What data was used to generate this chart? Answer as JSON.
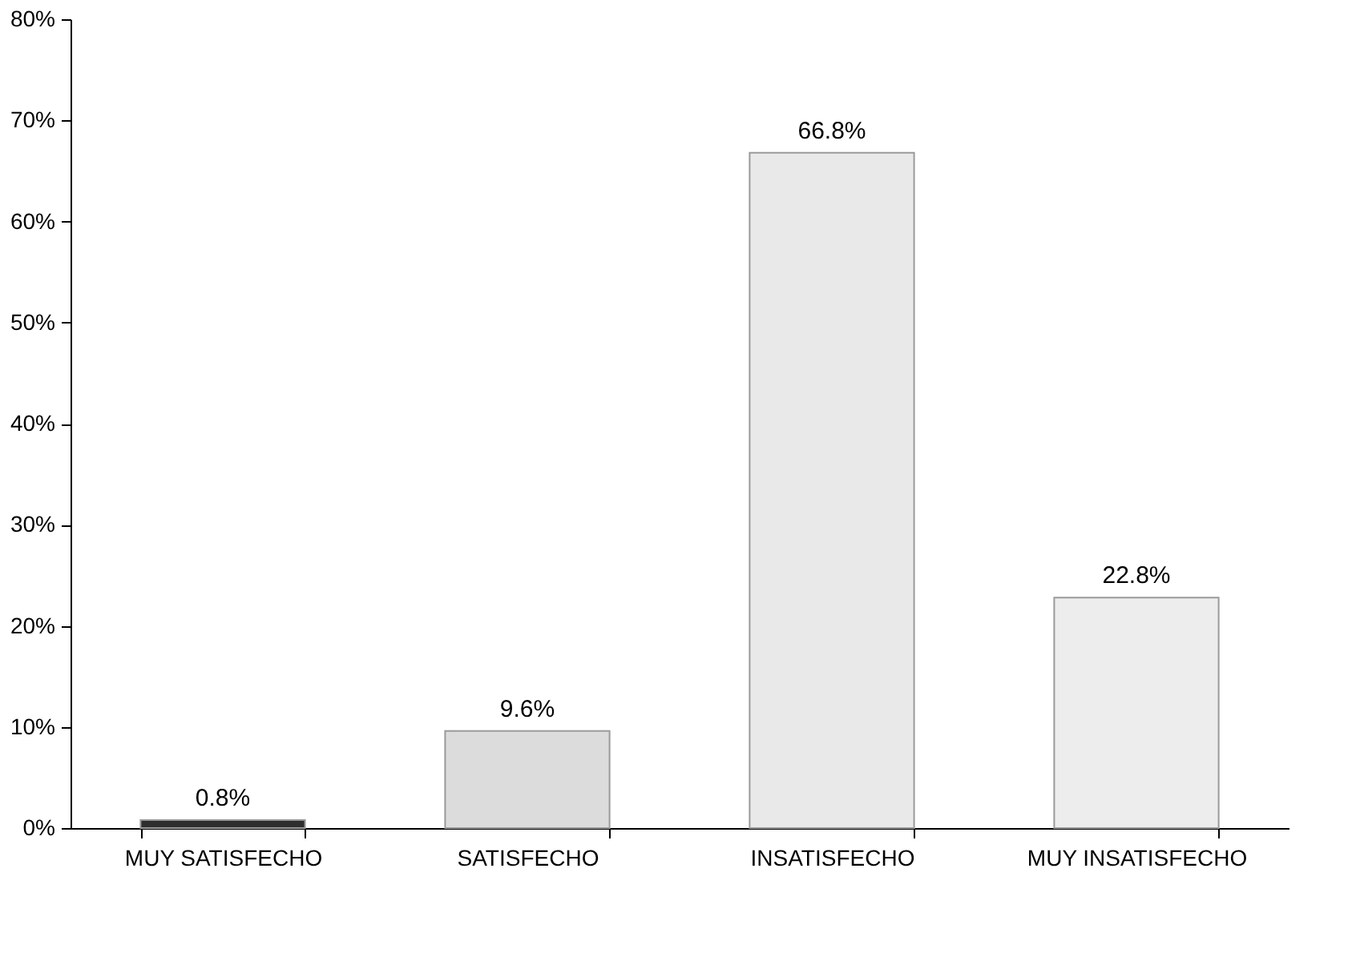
{
  "chart_data": {
    "type": "bar",
    "categories": [
      "MUY SATISFECHO",
      "SATISFECHO",
      "INSATISFECHO",
      "MUY INSATISFECHO"
    ],
    "values": [
      0.8,
      9.6,
      66.8,
      22.8
    ],
    "colors": [
      "#2e2e2e",
      "#dcdcdc",
      "#e9e9e9",
      "#ededed"
    ],
    "value_labels": [
      "0.8%",
      "9.6%",
      "66.8%",
      "22.8%"
    ],
    "ylim": [
      0,
      80
    ],
    "yticks": [
      {
        "value": 0,
        "label": "0%"
      },
      {
        "value": 10,
        "label": "10%"
      },
      {
        "value": 20,
        "label": "20%"
      },
      {
        "value": 30,
        "label": "30%"
      },
      {
        "value": 40,
        "label": "40%"
      },
      {
        "value": 50,
        "label": "50%"
      },
      {
        "value": 60,
        "label": "60%"
      },
      {
        "value": 70,
        "label": "70%"
      },
      {
        "value": 80,
        "label": "80%"
      }
    ],
    "grid": false
  }
}
